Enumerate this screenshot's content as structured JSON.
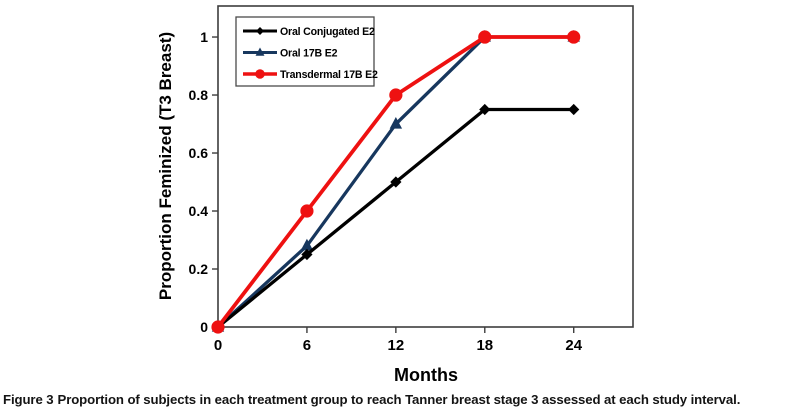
{
  "figure": {
    "caption_label": "Figure 3",
    "caption_text": "Proportion of subjects in each treatment group to reach Tanner breast stage 3 assessed at each study interval."
  },
  "chart_data": {
    "type": "line",
    "xlabel": "Months",
    "ylabel": "Proportion Feminized (T3 Breast)",
    "x": [
      0,
      6,
      12,
      18,
      24
    ],
    "x_ticks": [
      0,
      6,
      12,
      18,
      24
    ],
    "y_ticks": [
      0,
      0.2,
      0.4,
      0.6,
      0.8,
      1
    ],
    "xlim": [
      0,
      28
    ],
    "ylim": [
      0,
      1.107
    ],
    "grid": false,
    "legend_position": "top-left-inside",
    "series": [
      {
        "name": "Oral Conjugated E2",
        "color": "#000000",
        "marker": "diamond",
        "values": [
          0,
          0.25,
          0.5,
          0.75,
          0.75
        ]
      },
      {
        "name": "Oral 17B E2",
        "color": "#17375E",
        "marker": "triangle",
        "values": [
          0,
          0.28,
          0.7,
          1.0,
          1.0
        ]
      },
      {
        "name": "Transdermal 17B E2",
        "color": "#EE1111",
        "marker": "circle",
        "values": [
          0,
          0.4,
          0.8,
          1.0,
          1.0
        ]
      }
    ],
    "frame_color": "#3d3d3d",
    "legend_border_color": "#4a4a4a"
  }
}
